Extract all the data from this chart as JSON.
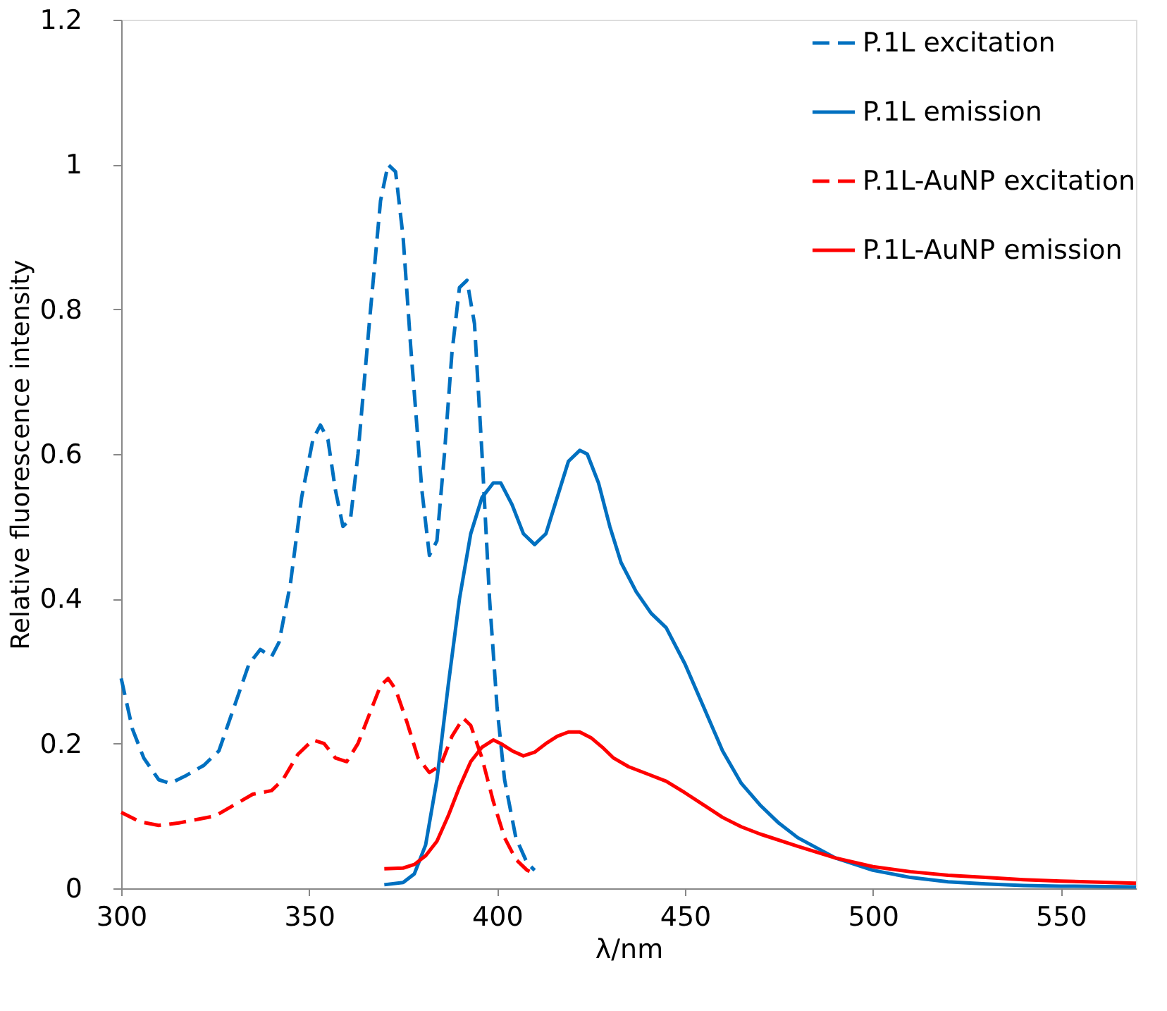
{
  "chart_data": {
    "type": "line",
    "xlabel": "λ/nm",
    "ylabel": "Relative fluorescence intensity",
    "xlim": [
      300,
      570
    ],
    "xticks": [
      300,
      350,
      400,
      450,
      500,
      550
    ],
    "ylim": [
      0,
      1.2
    ],
    "yticks": [
      0,
      0.2,
      0.4,
      0.6,
      0.8,
      1,
      1.2
    ],
    "grid": false,
    "legend": "top right",
    "marker": "none",
    "series": [
      {
        "name": "P.1L excitation",
        "color": "#0070c0",
        "line_style": "dashed",
        "x": [
          300,
          303,
          306,
          310,
          313,
          317,
          322,
          326,
          330,
          334,
          337,
          340,
          342,
          345,
          348,
          351,
          353,
          355,
          357,
          359,
          361,
          363,
          366,
          369,
          371,
          373,
          375,
          377,
          380,
          382,
          384,
          386,
          388,
          390,
          392,
          394,
          396,
          398,
          400,
          402,
          405,
          408,
          410
        ],
        "values": [
          0.29,
          0.22,
          0.18,
          0.15,
          0.145,
          0.155,
          0.17,
          0.19,
          0.25,
          0.31,
          0.33,
          0.32,
          0.34,
          0.42,
          0.54,
          0.62,
          0.64,
          0.62,
          0.55,
          0.5,
          0.51,
          0.6,
          0.78,
          0.95,
          1.0,
          0.99,
          0.9,
          0.75,
          0.55,
          0.46,
          0.48,
          0.6,
          0.74,
          0.83,
          0.84,
          0.78,
          0.6,
          0.4,
          0.25,
          0.15,
          0.07,
          0.035,
          0.025
        ]
      },
      {
        "name": "P.1L emission",
        "color": "#0070c0",
        "line_style": "solid",
        "x": [
          370,
          375,
          378,
          381,
          384,
          387,
          390,
          393,
          396,
          399,
          401,
          404,
          407,
          410,
          413,
          416,
          419,
          422,
          424,
          427,
          430,
          433,
          437,
          441,
          445,
          450,
          455,
          460,
          465,
          470,
          475,
          480,
          490,
          500,
          510,
          520,
          530,
          540,
          550,
          570
        ],
        "values": [
          0.005,
          0.008,
          0.02,
          0.06,
          0.15,
          0.28,
          0.4,
          0.49,
          0.54,
          0.56,
          0.56,
          0.53,
          0.49,
          0.475,
          0.49,
          0.54,
          0.59,
          0.605,
          0.6,
          0.56,
          0.5,
          0.45,
          0.41,
          0.38,
          0.36,
          0.31,
          0.25,
          0.19,
          0.145,
          0.115,
          0.09,
          0.07,
          0.042,
          0.025,
          0.015,
          0.009,
          0.006,
          0.004,
          0.003,
          0.002
        ]
      },
      {
        "name": "P.1L-AuNP excitation",
        "color": "#ff0000",
        "line_style": "dashed",
        "x": [
          300,
          305,
          310,
          315,
          320,
          325,
          330,
          335,
          340,
          343,
          347,
          351,
          354,
          357,
          360,
          363,
          366,
          369,
          371,
          373,
          376,
          379,
          382,
          385,
          388,
          391,
          393,
          396,
          399,
          402,
          405,
          408,
          410
        ],
        "values": [
          0.105,
          0.092,
          0.087,
          0.09,
          0.095,
          0.1,
          0.115,
          0.13,
          0.135,
          0.15,
          0.185,
          0.205,
          0.2,
          0.18,
          0.175,
          0.2,
          0.24,
          0.28,
          0.29,
          0.275,
          0.23,
          0.18,
          0.16,
          0.17,
          0.21,
          0.235,
          0.225,
          0.18,
          0.12,
          0.07,
          0.04,
          0.025,
          0.02
        ]
      },
      {
        "name": "P.1L-AuNP emission",
        "color": "#ff0000",
        "line_style": "solid",
        "x": [
          370,
          375,
          378,
          381,
          384,
          387,
          390,
          393,
          396,
          399,
          401,
          404,
          407,
          410,
          413,
          416,
          419,
          422,
          425,
          428,
          431,
          435,
          440,
          445,
          450,
          455,
          460,
          465,
          470,
          480,
          490,
          500,
          510,
          520,
          530,
          540,
          550,
          570
        ],
        "values": [
          0.027,
          0.028,
          0.033,
          0.045,
          0.065,
          0.1,
          0.14,
          0.175,
          0.195,
          0.205,
          0.2,
          0.19,
          0.183,
          0.188,
          0.2,
          0.21,
          0.216,
          0.216,
          0.208,
          0.195,
          0.18,
          0.168,
          0.158,
          0.148,
          0.132,
          0.115,
          0.098,
          0.085,
          0.075,
          0.058,
          0.042,
          0.03,
          0.023,
          0.018,
          0.015,
          0.012,
          0.01,
          0.007
        ]
      }
    ]
  }
}
